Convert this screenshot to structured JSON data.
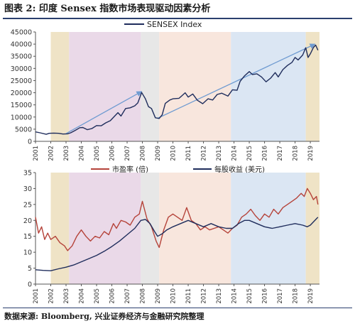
{
  "title": "图表 2: 印度 Sensex 指数市场表现驱动因素分析",
  "source": "数据来源: Bloomberg, 兴业证券经济与金融研究院整理",
  "colors": {
    "sensex": "#1f2d5c",
    "pe": "#b5433a",
    "eps": "#1f2d5c",
    "trend": "#6f9bd1",
    "band_tan": "#efe3c6",
    "band_mauve": "#ead9e8",
    "band_gray": "#e7e7e7",
    "band_pink": "#f8e6dd",
    "band_blue": "#dbe6f3",
    "axis": "#555555"
  },
  "chart_data": [
    {
      "type": "line",
      "title": "",
      "xlabel": "",
      "ylabel": "",
      "xlim": [
        2001,
        2019.6
      ],
      "ylim": [
        0,
        45000
      ],
      "yticks": [
        0,
        5000,
        10000,
        15000,
        20000,
        25000,
        30000,
        35000,
        40000,
        45000
      ],
      "xticks": [
        2001,
        2002,
        2003,
        2004,
        2005,
        2006,
        2007,
        2008,
        2009,
        2010,
        2011,
        2012,
        2013,
        2014,
        2015,
        2016,
        2017,
        2018,
        2019
      ],
      "legend": {
        "placement": "top-center",
        "entries": [
          "SENSEX Index"
        ]
      },
      "bands": [
        {
          "from": 2002.0,
          "to": 2003.2,
          "color": "band_tan"
        },
        {
          "from": 2003.2,
          "to": 2007.9,
          "color": "band_mauve"
        },
        {
          "from": 2007.9,
          "to": 2009.1,
          "color": "band_gray"
        },
        {
          "from": 2009.1,
          "to": 2013.8,
          "color": "band_pink"
        },
        {
          "from": 2013.8,
          "to": 2018.7,
          "color": "band_blue"
        },
        {
          "from": 2018.7,
          "to": 2019.6,
          "color": "band_tan"
        }
      ],
      "trend_arrows": [
        {
          "from": [
            2003.0,
            3200
          ],
          "to": [
            2007.95,
            20500
          ]
        },
        {
          "from": [
            2009.0,
            9500
          ],
          "to": [
            2019.3,
            40000
          ]
        }
      ],
      "series": [
        {
          "name": "SENSEX Index",
          "x": [
            2001.0,
            2001.3,
            2001.7,
            2001.9,
            2002.2,
            2002.5,
            2002.8,
            2003.1,
            2003.3,
            2003.6,
            2003.9,
            2004.1,
            2004.4,
            2004.7,
            2005.0,
            2005.3,
            2005.6,
            2005.9,
            2006.2,
            2006.4,
            2006.6,
            2006.9,
            2007.2,
            2007.5,
            2007.7,
            2007.95,
            2008.2,
            2008.4,
            2008.6,
            2008.85,
            2009.1,
            2009.3,
            2009.5,
            2009.8,
            2010.0,
            2010.4,
            2010.8,
            2011.0,
            2011.3,
            2011.6,
            2011.95,
            2012.3,
            2012.6,
            2012.9,
            2013.2,
            2013.6,
            2013.9,
            2014.2,
            2014.4,
            2014.7,
            2015.0,
            2015.2,
            2015.5,
            2015.8,
            2016.1,
            2016.4,
            2016.7,
            2016.9,
            2017.2,
            2017.5,
            2017.8,
            2018.0,
            2018.2,
            2018.5,
            2018.7,
            2018.85,
            2019.0,
            2019.2,
            2019.35,
            2019.5
          ],
          "values": [
            3900,
            3500,
            2900,
            3300,
            3400,
            3300,
            3000,
            3100,
            3500,
            4500,
            5600,
            5700,
            4800,
            5300,
            6500,
            6400,
            7600,
            8500,
            10500,
            11800,
            10400,
            13500,
            13800,
            14600,
            15800,
            20100,
            17500,
            14300,
            13500,
            9700,
            9400,
            11000,
            15600,
            17000,
            17500,
            17700,
            20000,
            18200,
            19500,
            16900,
            15500,
            17500,
            17000,
            19300,
            19800,
            18600,
            21200,
            21000,
            24700,
            27000,
            28700,
            27500,
            27800,
            26500,
            24500,
            26000,
            28300,
            26500,
            29500,
            31200,
            32500,
            34500,
            33500,
            35500,
            38500,
            34500,
            36000,
            38600,
            39600,
            37500
          ]
        }
      ]
    },
    {
      "type": "line",
      "title": "",
      "xlabel": "",
      "ylabel": "",
      "xlim": [
        2001,
        2019.6
      ],
      "ylim": [
        0,
        35
      ],
      "yticks": [
        0,
        5,
        10,
        15,
        20,
        25,
        30,
        35
      ],
      "xticks": [
        2001,
        2002,
        2003,
        2004,
        2005,
        2006,
        2007,
        2008,
        2009,
        2010,
        2011,
        2012,
        2013,
        2014,
        2015,
        2016,
        2017,
        2018,
        2019
      ],
      "legend": {
        "placement": "top-center",
        "entries": [
          "市盈率 (倍)",
          "每股收益 (美元)"
        ]
      },
      "bands": [
        {
          "from": 2002.0,
          "to": 2003.2,
          "color": "band_tan"
        },
        {
          "from": 2003.2,
          "to": 2007.9,
          "color": "band_mauve"
        },
        {
          "from": 2007.9,
          "to": 2009.1,
          "color": "band_gray"
        },
        {
          "from": 2009.1,
          "to": 2013.8,
          "color": "band_pink"
        },
        {
          "from": 2013.8,
          "to": 2018.7,
          "color": "band_blue"
        },
        {
          "from": 2018.7,
          "to": 2019.6,
          "color": "band_tan"
        }
      ],
      "series": [
        {
          "name": "市盈率 (倍)",
          "color_key": "pe",
          "x": [
            2001.0,
            2001.2,
            2001.4,
            2001.6,
            2001.8,
            2002.0,
            2002.3,
            2002.6,
            2002.9,
            2003.1,
            2003.4,
            2003.7,
            2004.0,
            2004.3,
            2004.6,
            2004.9,
            2005.2,
            2005.5,
            2005.8,
            2006.1,
            2006.3,
            2006.6,
            2006.9,
            2007.2,
            2007.5,
            2007.8,
            2008.0,
            2008.3,
            2008.6,
            2008.9,
            2009.1,
            2009.4,
            2009.7,
            2010.0,
            2010.3,
            2010.6,
            2010.9,
            2011.2,
            2011.5,
            2011.8,
            2012.1,
            2012.4,
            2012.7,
            2013.0,
            2013.3,
            2013.6,
            2013.9,
            2014.2,
            2014.5,
            2014.8,
            2015.1,
            2015.4,
            2015.7,
            2016.0,
            2016.3,
            2016.6,
            2016.9,
            2017.2,
            2017.5,
            2017.8,
            2018.1,
            2018.4,
            2018.6,
            2018.8,
            2019.0,
            2019.2,
            2019.4,
            2019.5
          ],
          "values": [
            21,
            16,
            18,
            14,
            16,
            14,
            15,
            13,
            12,
            10.5,
            12,
            15,
            17,
            15,
            13.5,
            15,
            14.5,
            16.5,
            15.5,
            19,
            17.5,
            20,
            19.5,
            18.5,
            21,
            22,
            26,
            20.5,
            18,
            13.5,
            11.5,
            17,
            21,
            22,
            21,
            20,
            24,
            20,
            19,
            17,
            18,
            17,
            17.5,
            18,
            17,
            16,
            17.5,
            18.5,
            21,
            22,
            23.5,
            21.5,
            20,
            22,
            21,
            23.5,
            22,
            24,
            25,
            26,
            27,
            28.5,
            27.5,
            30,
            28.5,
            26.5,
            27.5,
            25
          ]
        },
        {
          "name": "每股收益 (美元)",
          "color_key": "eps",
          "x": [
            2001.0,
            2001.5,
            2002.0,
            2002.5,
            2003.0,
            2003.5,
            2004.0,
            2004.5,
            2005.0,
            2005.5,
            2006.0,
            2006.5,
            2007.0,
            2007.5,
            2007.9,
            2008.2,
            2008.5,
            2008.8,
            2009.0,
            2009.3,
            2009.6,
            2010.0,
            2010.5,
            2011.0,
            2011.5,
            2012.0,
            2012.5,
            2013.0,
            2013.5,
            2013.9,
            2014.3,
            2014.7,
            2015.0,
            2015.5,
            2016.0,
            2016.5,
            2017.0,
            2017.5,
            2018.0,
            2018.5,
            2018.8,
            2019.0,
            2019.2,
            2019.4,
            2019.5
          ],
          "values": [
            4.5,
            4.3,
            4.2,
            4.8,
            5.3,
            6.0,
            7.0,
            8.0,
            9.0,
            10.3,
            11.8,
            13.5,
            15.5,
            17.5,
            20.0,
            20.3,
            19.0,
            16.5,
            15.0,
            15.8,
            17.0,
            18.0,
            19.0,
            20.0,
            19.0,
            18.0,
            19.0,
            18.0,
            17.5,
            17.5,
            19.0,
            20.0,
            20.0,
            19.0,
            18.0,
            17.5,
            18.0,
            18.5,
            19.0,
            18.5,
            18.0,
            18.5,
            19.5,
            20.5,
            21.0
          ]
        }
      ]
    }
  ]
}
